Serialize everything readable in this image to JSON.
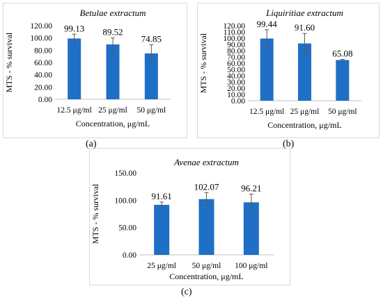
{
  "chart_data": [
    {
      "type": "bar",
      "title": "Betulae extractum",
      "xlabel": "Concentration, μg/mL",
      "ylabel": "MTS - % survival",
      "categories": [
        "12.5 μg/ml",
        "25 μg/ml",
        "50 μg/ml"
      ],
      "values": [
        99.13,
        89.52,
        74.85
      ],
      "value_labels": [
        "99.13",
        "89.52",
        "74.85"
      ],
      "errors": [
        7.0,
        10.5,
        14.0
      ],
      "ylim": [
        0,
        120
      ],
      "yticks": [
        "0.00",
        "20.00",
        "40.00",
        "60.00",
        "80.00",
        "100.00",
        "120.00"
      ],
      "bar_color": "#1f6fc6",
      "panel_label": "(a)"
    },
    {
      "type": "bar",
      "title": "Liquiritiae extractum",
      "xlabel": "Concentration, μg/mL",
      "ylabel": "MTS - % survival",
      "categories": [
        "12.5 μg/ml",
        "25 μg/ml",
        "50 μg/ml"
      ],
      "values": [
        99.44,
        91.6,
        65.08
      ],
      "value_labels": [
        "99.44",
        "91.60",
        "65.08"
      ],
      "errors": [
        14.0,
        16.0,
        1.0
      ],
      "ylim": [
        0,
        120
      ],
      "yticks": [
        "0.00",
        "10.00",
        "20.00",
        "30.00",
        "40.00",
        "50.00",
        "60.00",
        "70.00",
        "80.00",
        "90.00",
        "100.00",
        "110.00",
        "120.00"
      ],
      "bar_color": "#1f6fc6",
      "panel_label": "(b)"
    },
    {
      "type": "bar",
      "title": "Avenae extractum",
      "xlabel": "Concentration, μg/mL",
      "ylabel": "MTS - % survival",
      "categories": [
        "25 μg/ml",
        "50 μg/ml",
        "100 μg/ml"
      ],
      "values": [
        91.61,
        102.07,
        96.21
      ],
      "value_labels": [
        "91.61",
        "102.07",
        "96.21"
      ],
      "errors": [
        5.0,
        12.0,
        15.0
      ],
      "ylim": [
        0,
        150
      ],
      "yticks": [
        "0.00",
        "50.00",
        "100.00",
        "150.00"
      ],
      "bar_color": "#1f6fc6",
      "panel_label": "(c)"
    }
  ]
}
